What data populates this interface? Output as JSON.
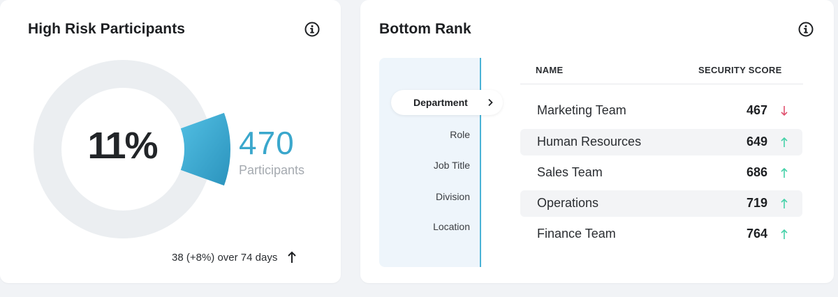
{
  "high_risk": {
    "title": "High Risk Participants",
    "percent_label": "11%",
    "percent_value": 0.11,
    "participants_count": "470",
    "participants_label": "Participants",
    "trend_text": "38 (+8%) over 74 days",
    "trend_icon": "arrow-up-icon",
    "colors": {
      "ring": "#ebeef1",
      "accent": "#3aa7cc"
    }
  },
  "bottom_rank": {
    "title": "Bottom Rank",
    "filters": {
      "active": "Department",
      "items": [
        "Role",
        "Job Title",
        "Division",
        "Location"
      ]
    },
    "columns": {
      "name": "NAME",
      "score": "SECURITY SCORE"
    },
    "rows": [
      {
        "name": "Marketing Team",
        "score": "467",
        "trend": "down"
      },
      {
        "name": "Human Resources",
        "score": "649",
        "trend": "up"
      },
      {
        "name": "Sales Team",
        "score": "686",
        "trend": "up"
      },
      {
        "name": "Operations",
        "score": "719",
        "trend": "up"
      },
      {
        "name": "Finance Team",
        "score": "764",
        "trend": "up"
      }
    ],
    "colors": {
      "down": "#e0506e",
      "up": "#45d1a8"
    }
  }
}
